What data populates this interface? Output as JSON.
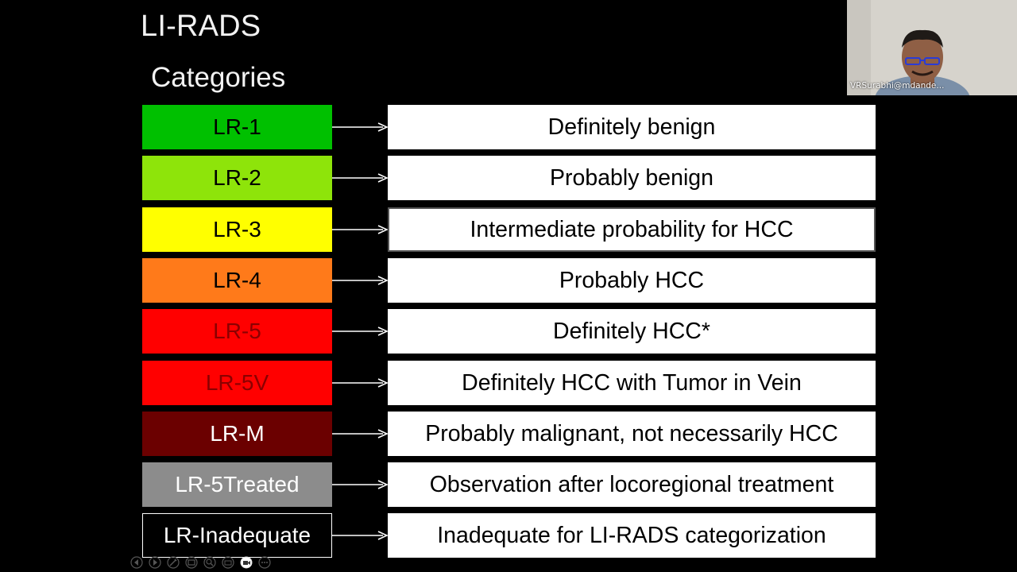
{
  "slide": {
    "title": "LI-RADS",
    "subtitle": "Categories"
  },
  "categories": [
    {
      "label": "LR-1",
      "description": "Definitely benign",
      "bg": "#00c000",
      "fg": "#000000"
    },
    {
      "label": "LR-2",
      "description": "Probably benign",
      "bg": "#8ee40a",
      "fg": "#000000"
    },
    {
      "label": "LR-3",
      "description": "Intermediate probability for HCC",
      "bg": "#ffff00",
      "fg": "#000000"
    },
    {
      "label": "LR-4",
      "description": "Probably HCC",
      "bg": "#ff7a1a",
      "fg": "#000000"
    },
    {
      "label": "LR-5",
      "description": "Definitely HCC*",
      "bg": "#ff0000",
      "fg": "#8b0000"
    },
    {
      "label": "LR-5V",
      "description": "Definitely HCC with Tumor in Vein",
      "bg": "#ff0000",
      "fg": "#8b0000"
    },
    {
      "label": "LR-M",
      "description": "Probably malignant, not necessarily HCC",
      "bg": "#6b0000",
      "fg": "#ffffff"
    },
    {
      "label": "LR-5Treated",
      "description": "Observation after locoregional treatment",
      "bg": "#8c8c8c",
      "fg": "#ffffff"
    },
    {
      "label": "LR-Inadequate",
      "description": "Inadequate for LI-RADS categorization",
      "bg": "#000000",
      "fg": "#ffffff"
    }
  ],
  "webcam": {
    "participant_name": "VRSurabhi@mdande..."
  },
  "toolbar": {
    "icons": [
      "previous-icon",
      "next-icon",
      "pen-icon",
      "slides-icon",
      "zoom-icon",
      "subtitles-icon",
      "camera-icon",
      "more-icon"
    ]
  }
}
